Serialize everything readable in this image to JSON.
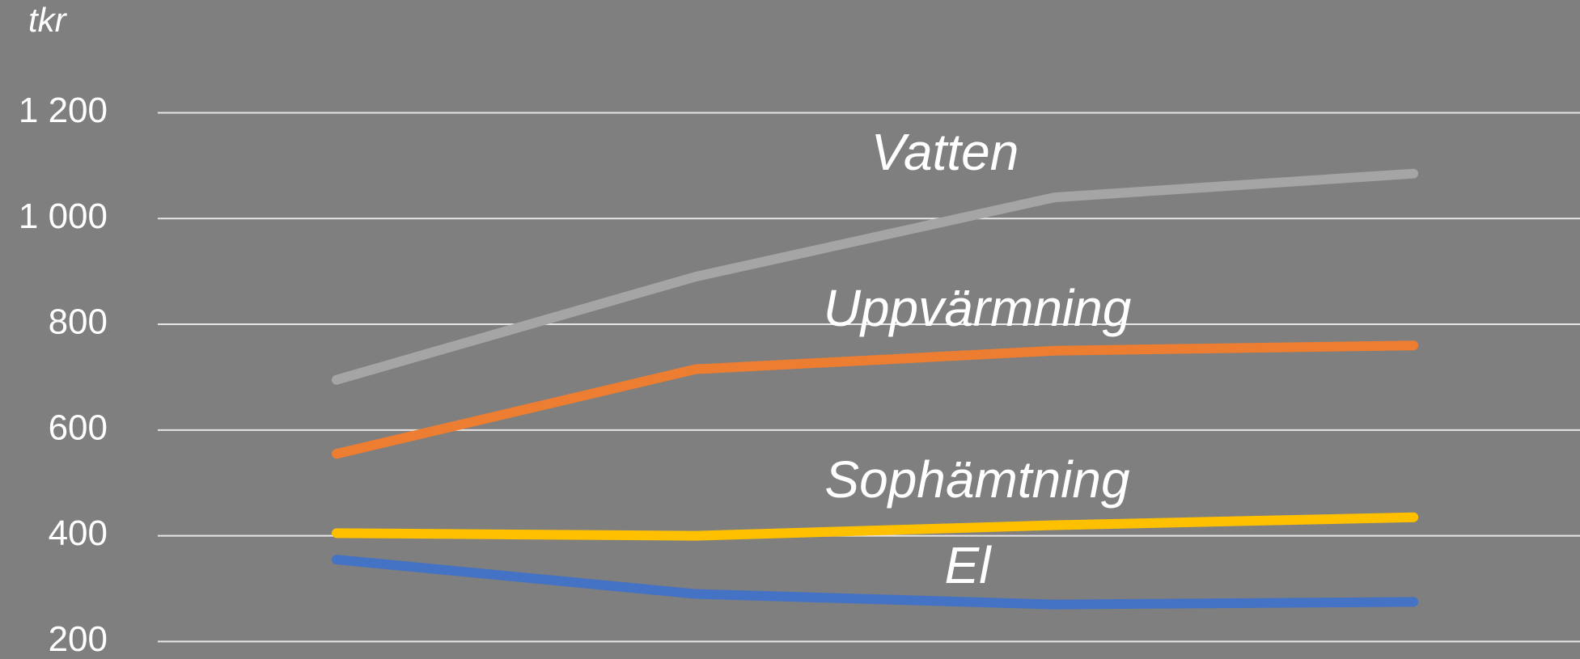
{
  "chart_data": {
    "type": "line",
    "y_axis_label": "tkr",
    "categories": [
      null,
      null,
      null,
      null
    ],
    "series": [
      {
        "name": "Vatten",
        "color": "#a5a5a5",
        "values": [
          695,
          890,
          1040,
          1085
        ]
      },
      {
        "name": "Uppvärmning",
        "color": "#ed7d31",
        "values": [
          555,
          715,
          750,
          760
        ]
      },
      {
        "name": "Sophämtning",
        "color": "#ffc000",
        "values": [
          405,
          400,
          420,
          435
        ]
      },
      {
        "name": "El",
        "color": "#4472c4",
        "values": [
          355,
          290,
          270,
          275
        ]
      }
    ],
    "ylim": [
      200,
      1200
    ],
    "yticks": [
      200,
      400,
      600,
      800,
      {
        "value": 1000,
        "label": "1 000"
      },
      {
        "value": 1200,
        "label": "1 200"
      }
    ],
    "grid": true
  }
}
